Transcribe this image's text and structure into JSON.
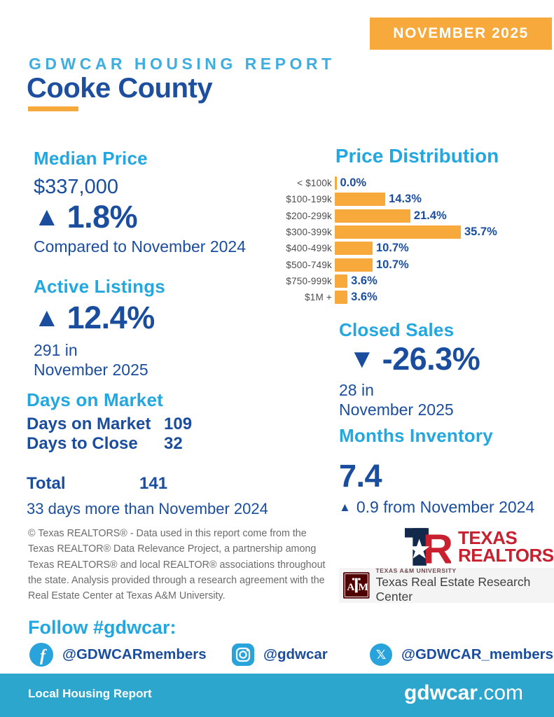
{
  "badge": {
    "label": "NOVEMBER 2025"
  },
  "header": {
    "kicker": "GDWCAR HOUSING REPORT",
    "title": "Cooke County"
  },
  "stats": {
    "median_price": {
      "heading": "Median Price",
      "value": "$337,000",
      "change": "1.8%",
      "direction": "up",
      "compare": "Compared to November 2024"
    },
    "active_listings": {
      "heading": "Active Listings",
      "change": "12.4%",
      "direction": "up",
      "count_line1": "291 in",
      "count_line2": "November 2025"
    },
    "days_on_market": {
      "heading": "Days on Market",
      "rows": [
        {
          "label": "Days on Market",
          "value": "109"
        },
        {
          "label": "Days to Close",
          "value": "32"
        }
      ],
      "total_label": "Total",
      "total_value": "141",
      "note": "33 days more than November 2024"
    },
    "closed_sales": {
      "heading": "Closed Sales",
      "change": "-26.3%",
      "direction": "down",
      "count_line1": "28 in",
      "count_line2": "November 2025"
    },
    "months_inventory": {
      "heading": "Months Inventory",
      "value": "7.4",
      "note": "0.9 from November 2024",
      "note_direction": "up"
    }
  },
  "chart_data": {
    "type": "bar",
    "orientation": "horizontal",
    "title": "Price Distribution",
    "categories": [
      "< $100k",
      "$100-199k",
      "$200-299k",
      "$300-399k",
      "$400-499k",
      "$500-749k",
      "$750-999k",
      "$1M +"
    ],
    "values": [
      0.0,
      14.3,
      21.4,
      35.7,
      10.7,
      10.7,
      3.6,
      3.6
    ],
    "value_labels": [
      "0.0%",
      "14.3%",
      "21.4%",
      "35.7%",
      "10.7%",
      "10.7%",
      "3.6%",
      "3.6%"
    ],
    "xlim": [
      0,
      35.7
    ],
    "grid": false,
    "legend": false,
    "bar_color": "#F7A93C",
    "label_color": "#4d4d4d",
    "value_color": "#1B4D9E"
  },
  "disclaimer": "© Texas REALTORS® - Data used in this report come from the Texas REALTOR® Data Relevance Project, a partnership among Texas REALTORS® and local REALTOR® associations throughout the state. Analysis provided through a research agreement with the Real Estate Center at Texas A&M University.",
  "logos": {
    "realtors": {
      "line1": "TEXAS",
      "line2": "REALTORS®"
    },
    "amu": {
      "line1": "TEXAS A&M UNIVERSITY",
      "line2": "Texas Real Estate Research Center"
    }
  },
  "social": {
    "heading": "Follow #gdwcar:",
    "accounts": [
      {
        "network": "facebook",
        "handle": "@GDWCARmembers"
      },
      {
        "network": "instagram",
        "handle": "@gdwcar"
      },
      {
        "network": "x",
        "handle": "@GDWCAR_members"
      }
    ]
  },
  "footer": {
    "left": "Local Housing Report",
    "site_bold": "gdwcar",
    "site_rest": ".com"
  },
  "colors": {
    "cyan": "#22A7E0",
    "navy": "#1B4D9E",
    "orange": "#F7A93C",
    "footer_bar": "#2CA6CC"
  }
}
